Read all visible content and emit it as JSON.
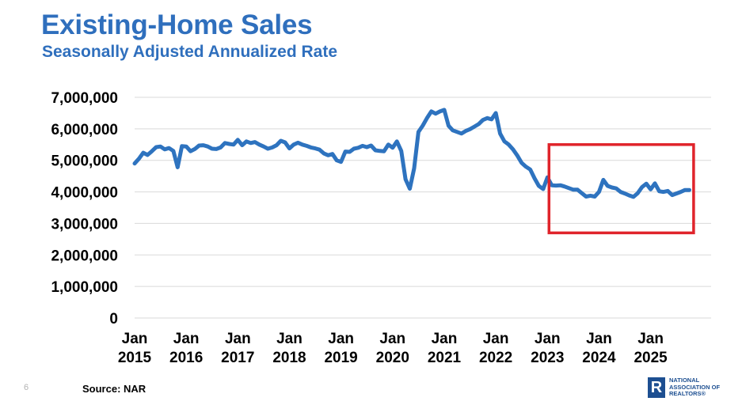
{
  "slide": {
    "number": "6",
    "source_label": "Source: NAR",
    "logo": {
      "mark": "R",
      "lines": [
        "NATIONAL",
        "ASSOCIATION OF",
        "REALTORS®"
      ]
    }
  },
  "colors": {
    "accent": "#2f6fbd",
    "line": "#2e73bf",
    "highlight": "#e0242b",
    "grid": "#d9d9d9"
  },
  "chart_data": {
    "type": "line",
    "title": "Existing-Home Sales",
    "subtitle": "Seasonally Adjusted Annualized Rate",
    "xlabel": "",
    "ylabel": "",
    "ylim": [
      0,
      7000000
    ],
    "yticks": [
      {
        "value": 0,
        "label": "0"
      },
      {
        "value": 1000000,
        "label": "1,000,000"
      },
      {
        "value": 2000000,
        "label": "2,000,000"
      },
      {
        "value": 3000000,
        "label": "3,000,000"
      },
      {
        "value": 4000000,
        "label": "4,000,000"
      },
      {
        "value": 5000000,
        "label": "5,000,000"
      },
      {
        "value": 6000000,
        "label": "6,000,000"
      },
      {
        "value": 7000000,
        "label": "7,000,000"
      }
    ],
    "xticks": [
      {
        "month_index": 0,
        "line1": "Jan",
        "line2": "2015"
      },
      {
        "month_index": 12,
        "line1": "Jan",
        "line2": "2016"
      },
      {
        "month_index": 24,
        "line1": "Jan",
        "line2": "2017"
      },
      {
        "month_index": 36,
        "line1": "Jan",
        "line2": "2018"
      },
      {
        "month_index": 48,
        "line1": "Jan",
        "line2": "2019"
      },
      {
        "month_index": 60,
        "line1": "Jan",
        "line2": "2020"
      },
      {
        "month_index": 72,
        "line1": "Jan",
        "line2": "2021"
      },
      {
        "month_index": 84,
        "line1": "Jan",
        "line2": "2022"
      },
      {
        "month_index": 96,
        "line1": "Jan",
        "line2": "2023"
      },
      {
        "month_index": 108,
        "line1": "Jan",
        "line2": "2024"
      },
      {
        "month_index": 120,
        "line1": "Jan",
        "line2": "2025"
      }
    ],
    "x_start": "Jan 2015",
    "x_frequency": "monthly",
    "grid": true,
    "legend": "none",
    "series": [
      {
        "name": "Existing-Home Sales",
        "values": [
          4900000,
          5050000,
          5240000,
          5170000,
          5290000,
          5420000,
          5440000,
          5350000,
          5390000,
          5300000,
          4780000,
          5450000,
          5440000,
          5290000,
          5360000,
          5470000,
          5480000,
          5440000,
          5370000,
          5360000,
          5410000,
          5550000,
          5520000,
          5500000,
          5650000,
          5480000,
          5600000,
          5550000,
          5580000,
          5500000,
          5440000,
          5370000,
          5410000,
          5480000,
          5620000,
          5570000,
          5380000,
          5500000,
          5560000,
          5500000,
          5460000,
          5410000,
          5380000,
          5340000,
          5220000,
          5160000,
          5200000,
          5000000,
          4950000,
          5280000,
          5270000,
          5370000,
          5400000,
          5460000,
          5420000,
          5470000,
          5320000,
          5300000,
          5290000,
          5500000,
          5400000,
          5600000,
          5300000,
          4400000,
          4100000,
          4750000,
          5900000,
          6100000,
          6340000,
          6550000,
          6480000,
          6550000,
          6600000,
          6100000,
          5950000,
          5900000,
          5850000,
          5930000,
          5990000,
          6070000,
          6150000,
          6280000,
          6340000,
          6300000,
          6500000,
          5850000,
          5600000,
          5500000,
          5350000,
          5150000,
          4920000,
          4800000,
          4710000,
          4430000,
          4190000,
          4090000,
          4460000,
          4210000,
          4200000,
          4210000,
          4170000,
          4120000,
          4070000,
          4070000,
          3960000,
          3850000,
          3880000,
          3850000,
          4000000,
          4380000,
          4190000,
          4140000,
          4110000,
          4000000,
          3950000,
          3890000,
          3840000,
          3960000,
          4150000,
          4260000,
          4080000,
          4270000,
          4020000,
          4000000,
          4030000,
          3900000,
          3950000,
          4000000,
          4060000,
          4060000
        ]
      }
    ],
    "annotations": [
      {
        "type": "highlight-box",
        "x_from_month_index": 96,
        "x_to_month_index": 130,
        "y_from": 2700000,
        "y_to": 5500000,
        "color": "#e0242b"
      }
    ]
  }
}
